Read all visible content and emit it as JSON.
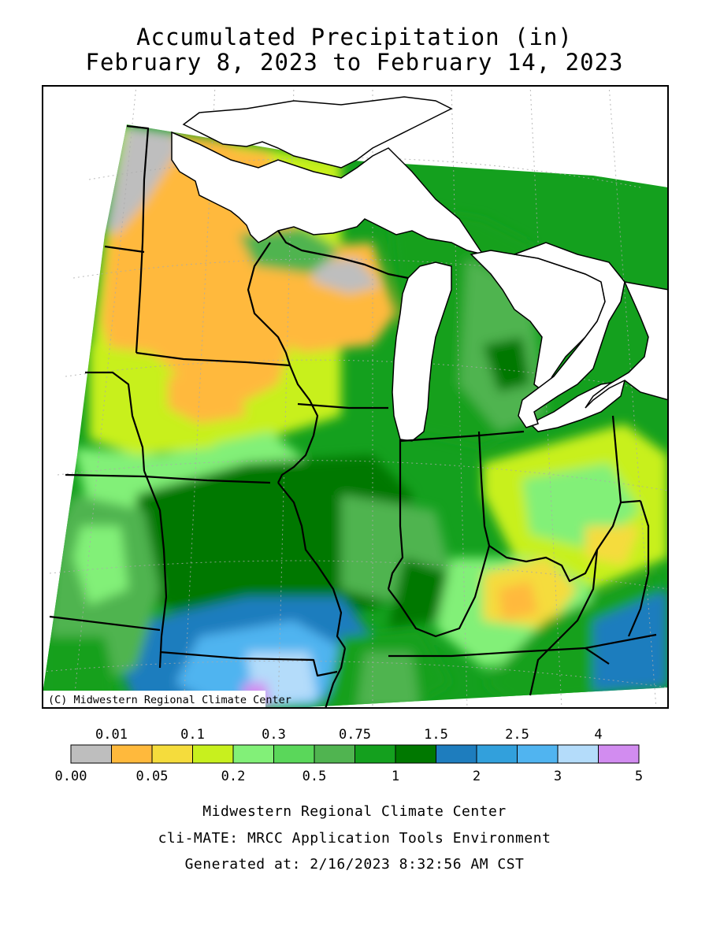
{
  "title": {
    "line1": "Accumulated Precipitation (in)",
    "line2": "February 8, 2023 to February 14, 2023"
  },
  "map": {
    "copyright": "(C) Midwestern Regional Climate Center",
    "units": "in"
  },
  "legend": {
    "bins": [
      {
        "color": "#bebebe"
      },
      {
        "color": "#ffb93c"
      },
      {
        "color": "#f5dc3c"
      },
      {
        "color": "#c8f01e"
      },
      {
        "color": "#82f078"
      },
      {
        "color": "#5ad75a"
      },
      {
        "color": "#50b450"
      },
      {
        "color": "#14a01e"
      },
      {
        "color": "#007800"
      },
      {
        "color": "#1e7dbe"
      },
      {
        "color": "#32a0dc"
      },
      {
        "color": "#50b4f0"
      },
      {
        "color": "#b4dcfa"
      },
      {
        "color": "#d28cf0"
      }
    ],
    "top_labels": [
      "0.01",
      "0.1",
      "0.3",
      "0.75",
      "1.5",
      "2.5",
      "4"
    ],
    "bottom_labels": [
      "0.00",
      "0.05",
      "0.2",
      "0.5",
      "1",
      "2",
      "3",
      "5"
    ]
  },
  "footer": {
    "line1": "Midwestern Regional Climate Center",
    "line2": "cli-MATE: MRCC Application Tools Environment",
    "line3": "Generated at: 2/16/2023 8:32:56 AM CST"
  }
}
